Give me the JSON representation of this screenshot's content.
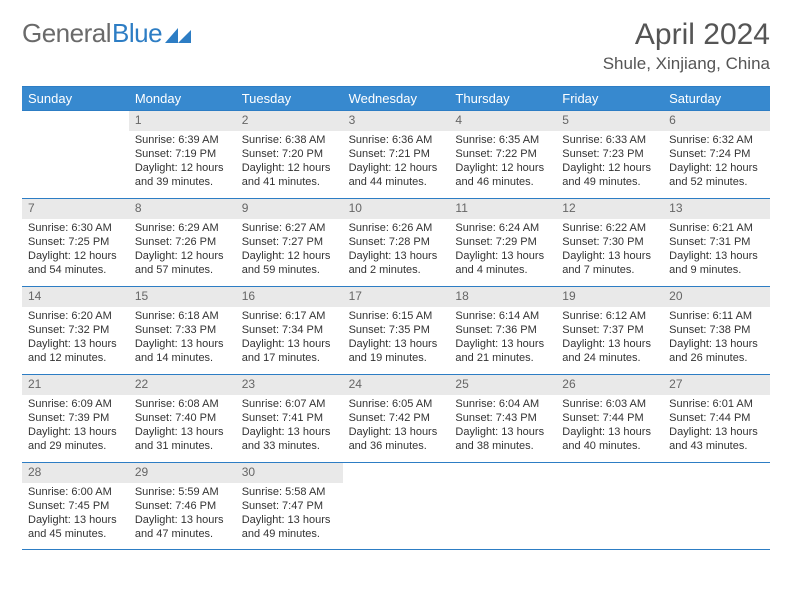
{
  "brand": {
    "name_part1": "General",
    "name_part2": "Blue"
  },
  "colors": {
    "accent": "#3789cf",
    "border": "#2d7dc4",
    "day_bg": "#e9e9e9",
    "text": "#333333",
    "muted": "#666666",
    "bg": "#ffffff"
  },
  "title": "April 2024",
  "location": "Shule, Xinjiang, China",
  "days_of_week": [
    "Sunday",
    "Monday",
    "Tuesday",
    "Wednesday",
    "Thursday",
    "Friday",
    "Saturday"
  ],
  "first_weekday_offset": 1,
  "month_length": 30,
  "cells": [
    {
      "n": 1,
      "sunrise": "6:39 AM",
      "sunset": "7:19 PM",
      "daylight": "12 hours and 39 minutes."
    },
    {
      "n": 2,
      "sunrise": "6:38 AM",
      "sunset": "7:20 PM",
      "daylight": "12 hours and 41 minutes."
    },
    {
      "n": 3,
      "sunrise": "6:36 AM",
      "sunset": "7:21 PM",
      "daylight": "12 hours and 44 minutes."
    },
    {
      "n": 4,
      "sunrise": "6:35 AM",
      "sunset": "7:22 PM",
      "daylight": "12 hours and 46 minutes."
    },
    {
      "n": 5,
      "sunrise": "6:33 AM",
      "sunset": "7:23 PM",
      "daylight": "12 hours and 49 minutes."
    },
    {
      "n": 6,
      "sunrise": "6:32 AM",
      "sunset": "7:24 PM",
      "daylight": "12 hours and 52 minutes."
    },
    {
      "n": 7,
      "sunrise": "6:30 AM",
      "sunset": "7:25 PM",
      "daylight": "12 hours and 54 minutes."
    },
    {
      "n": 8,
      "sunrise": "6:29 AM",
      "sunset": "7:26 PM",
      "daylight": "12 hours and 57 minutes."
    },
    {
      "n": 9,
      "sunrise": "6:27 AM",
      "sunset": "7:27 PM",
      "daylight": "12 hours and 59 minutes."
    },
    {
      "n": 10,
      "sunrise": "6:26 AM",
      "sunset": "7:28 PM",
      "daylight": "13 hours and 2 minutes."
    },
    {
      "n": 11,
      "sunrise": "6:24 AM",
      "sunset": "7:29 PM",
      "daylight": "13 hours and 4 minutes."
    },
    {
      "n": 12,
      "sunrise": "6:22 AM",
      "sunset": "7:30 PM",
      "daylight": "13 hours and 7 minutes."
    },
    {
      "n": 13,
      "sunrise": "6:21 AM",
      "sunset": "7:31 PM",
      "daylight": "13 hours and 9 minutes."
    },
    {
      "n": 14,
      "sunrise": "6:20 AM",
      "sunset": "7:32 PM",
      "daylight": "13 hours and 12 minutes."
    },
    {
      "n": 15,
      "sunrise": "6:18 AM",
      "sunset": "7:33 PM",
      "daylight": "13 hours and 14 minutes."
    },
    {
      "n": 16,
      "sunrise": "6:17 AM",
      "sunset": "7:34 PM",
      "daylight": "13 hours and 17 minutes."
    },
    {
      "n": 17,
      "sunrise": "6:15 AM",
      "sunset": "7:35 PM",
      "daylight": "13 hours and 19 minutes."
    },
    {
      "n": 18,
      "sunrise": "6:14 AM",
      "sunset": "7:36 PM",
      "daylight": "13 hours and 21 minutes."
    },
    {
      "n": 19,
      "sunrise": "6:12 AM",
      "sunset": "7:37 PM",
      "daylight": "13 hours and 24 minutes."
    },
    {
      "n": 20,
      "sunrise": "6:11 AM",
      "sunset": "7:38 PM",
      "daylight": "13 hours and 26 minutes."
    },
    {
      "n": 21,
      "sunrise": "6:09 AM",
      "sunset": "7:39 PM",
      "daylight": "13 hours and 29 minutes."
    },
    {
      "n": 22,
      "sunrise": "6:08 AM",
      "sunset": "7:40 PM",
      "daylight": "13 hours and 31 minutes."
    },
    {
      "n": 23,
      "sunrise": "6:07 AM",
      "sunset": "7:41 PM",
      "daylight": "13 hours and 33 minutes."
    },
    {
      "n": 24,
      "sunrise": "6:05 AM",
      "sunset": "7:42 PM",
      "daylight": "13 hours and 36 minutes."
    },
    {
      "n": 25,
      "sunrise": "6:04 AM",
      "sunset": "7:43 PM",
      "daylight": "13 hours and 38 minutes."
    },
    {
      "n": 26,
      "sunrise": "6:03 AM",
      "sunset": "7:44 PM",
      "daylight": "13 hours and 40 minutes."
    },
    {
      "n": 27,
      "sunrise": "6:01 AM",
      "sunset": "7:44 PM",
      "daylight": "13 hours and 43 minutes."
    },
    {
      "n": 28,
      "sunrise": "6:00 AM",
      "sunset": "7:45 PM",
      "daylight": "13 hours and 45 minutes."
    },
    {
      "n": 29,
      "sunrise": "5:59 AM",
      "sunset": "7:46 PM",
      "daylight": "13 hours and 47 minutes."
    },
    {
      "n": 30,
      "sunrise": "5:58 AM",
      "sunset": "7:47 PM",
      "daylight": "13 hours and 49 minutes."
    }
  ],
  "labels": {
    "sunrise": "Sunrise:",
    "sunset": "Sunset:",
    "daylight": "Daylight:"
  }
}
